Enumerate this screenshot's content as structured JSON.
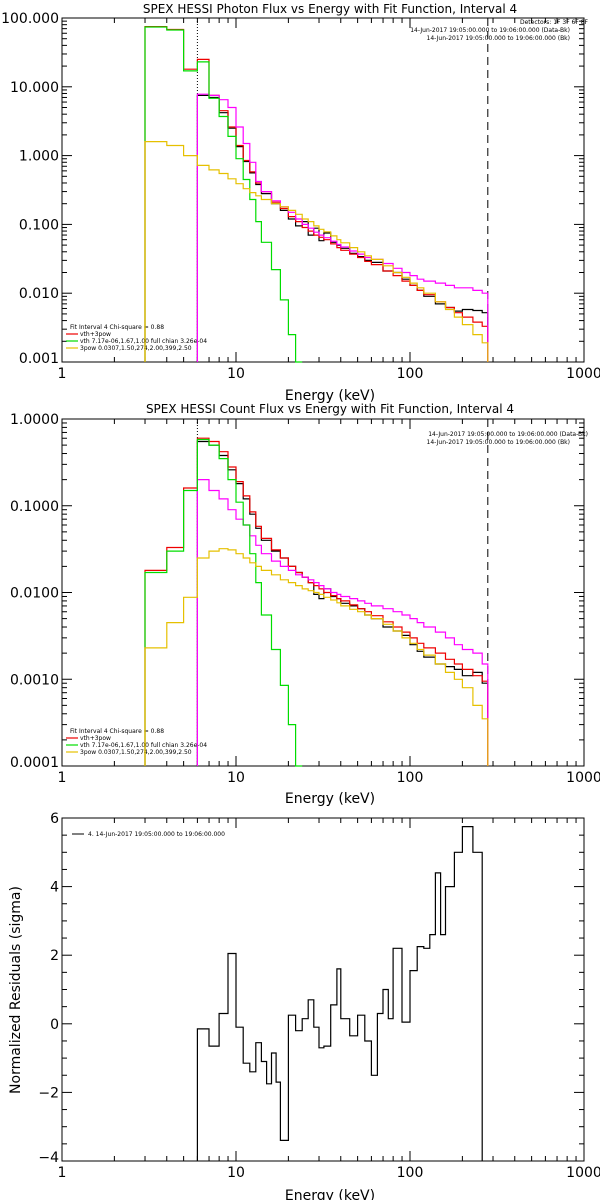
{
  "chart_data": [
    {
      "type": "line",
      "title": "SPEX HESSI Photon Flux vs Energy with Fit Function, Interval 4",
      "xlabel": "Energy (keV)",
      "ylabel": "",
      "xscale": "log",
      "yscale": "log",
      "xlim": [
        1,
        1000
      ],
      "ylim": [
        0.001,
        100
      ],
      "xticklabels": [
        "1",
        "10",
        "100",
        "1000"
      ],
      "yticks": [
        0.001,
        0.01,
        0.1,
        1,
        10,
        100
      ],
      "yticklabels": [
        "0.001",
        "0.010",
        "0.100",
        "1.000",
        "10.000",
        "100.000"
      ],
      "info_lines": [
        "Detectors: 1F 3F 6F 8F",
        "14-Jun-2017 19:05:00.000 to 19:06:00.000 (Data-Bk)",
        "14-Jun-2017 19:05:00.000 to 19:06:00.000 (Bk)"
      ],
      "fit_text": [
        "Fit Interval 4   Chi-square = 0.88",
        "vth+3pow",
        "vth 7.17e-06,1.67,1.00  full chian 3.26e-04",
        "3pow 0.0307,1.50,274,2.00,399,2.50"
      ],
      "vlines": [
        6,
        280
      ],
      "x": [
        3,
        4,
        5,
        6,
        7,
        8,
        9,
        10,
        11,
        12,
        13,
        14,
        16,
        18,
        20,
        22,
        24,
        26,
        28,
        30,
        32,
        35,
        38,
        40,
        45,
        50,
        55,
        60,
        70,
        80,
        90,
        100,
        110,
        120,
        140,
        160,
        180,
        200,
        230,
        260,
        280
      ],
      "series": [
        {
          "name": "",
          "color": "#000000",
          "values": [
            null,
            null,
            null,
            7.5,
            7.0,
            4.2,
            2.5,
            1.35,
            0.82,
            0.56,
            0.38,
            0.28,
            0.2,
            0.16,
            0.12,
            0.095,
            0.11,
            0.07,
            0.088,
            0.058,
            0.075,
            0.055,
            0.05,
            0.045,
            0.038,
            0.034,
            0.03,
            0.028,
            0.021,
            0.02,
            0.016,
            0.013,
            0.011,
            0.009,
            0.007,
            0.0062,
            0.0055,
            0.0058,
            0.0056,
            0.0052,
            null
          ]
        },
        {
          "name": "",
          "color": "#ee0000",
          "values": [
            75,
            68,
            18,
            25,
            7.5,
            4.5,
            2.6,
            1.4,
            0.85,
            0.58,
            0.4,
            0.3,
            0.21,
            0.17,
            0.13,
            0.11,
            0.09,
            0.08,
            0.07,
            0.065,
            0.06,
            0.052,
            0.046,
            0.042,
            0.037,
            0.033,
            0.029,
            0.026,
            0.021,
            0.018,
            0.015,
            0.013,
            0.011,
            0.0095,
            0.0075,
            0.0062,
            0.0052,
            0.0045,
            0.0038,
            0.0033,
            null
          ]
        },
        {
          "name": "",
          "color": "#ff00ff",
          "values": [
            null,
            null,
            null,
            7.8,
            7.5,
            6.5,
            5.0,
            2.6,
            1.5,
            0.8,
            0.42,
            0.3,
            0.22,
            0.18,
            0.15,
            0.12,
            0.1,
            0.088,
            0.077,
            0.07,
            0.064,
            0.057,
            0.051,
            0.047,
            0.041,
            0.037,
            0.033,
            0.031,
            0.027,
            0.023,
            0.02,
            0.018,
            0.016,
            0.015,
            0.014,
            0.013,
            0.012,
            0.012,
            0.011,
            0.01,
            null
          ]
        },
        {
          "name": "",
          "color": "#00dd00",
          "values": [
            74,
            67,
            17,
            23,
            6.8,
            3.7,
            1.9,
            0.9,
            0.45,
            0.23,
            0.11,
            0.055,
            0.022,
            0.008,
            0.0025,
            0.0007,
            null,
            null,
            null,
            null,
            null,
            null,
            null,
            null,
            null,
            null,
            null,
            null,
            null,
            null,
            null,
            null,
            null,
            null,
            null,
            null,
            null,
            null,
            null,
            null,
            null
          ]
        },
        {
          "name": "",
          "color": "#e6c000",
          "values": [
            1.6,
            1.4,
            1.0,
            0.72,
            0.62,
            0.55,
            0.46,
            0.39,
            0.33,
            0.29,
            0.26,
            0.23,
            0.2,
            0.18,
            0.16,
            0.14,
            0.12,
            0.11,
            0.095,
            0.085,
            0.078,
            0.068,
            0.06,
            0.054,
            0.046,
            0.04,
            0.035,
            0.031,
            0.025,
            0.02,
            0.017,
            0.014,
            0.012,
            0.01,
            0.0075,
            0.0058,
            0.0045,
            0.0035,
            0.0025,
            0.0019,
            null
          ]
        }
      ]
    },
    {
      "type": "line",
      "title": "SPEX HESSI Count Flux vs Energy with Fit Function, Interval 4",
      "xlabel": "Energy (keV)",
      "ylabel": "",
      "xscale": "log",
      "yscale": "log",
      "xlim": [
        1,
        1000
      ],
      "ylim": [
        0.0001,
        1
      ],
      "xticklabels": [
        "1",
        "10",
        "100",
        "1000"
      ],
      "yticks": [
        0.0001,
        0.001,
        0.01,
        0.1,
        1
      ],
      "yticklabels": [
        "0.0001",
        "0.0010",
        "0.0100",
        "0.1000",
        "1.0000"
      ],
      "info_lines": [
        "14-Jun-2017 19:05:00.000 to 19:06:00.000 (Data-Bk)",
        "14-Jun-2017 19:05:00.000 to 19:06:00.000 (Bk)"
      ],
      "fit_text": [
        "Fit Interval 4   Chi-square = 0.88",
        "vth+3pow",
        "vth 7.17e-06,1.67,1.00  full chian 3.26e-04",
        "3pow 0.0307,1.50,274,2.00,399,2.50"
      ],
      "vlines": [
        6,
        280
      ],
      "x": [
        3,
        4,
        5,
        6,
        7,
        8,
        9,
        10,
        11,
        12,
        13,
        14,
        16,
        18,
        20,
        22,
        24,
        26,
        28,
        30,
        32,
        35,
        38,
        40,
        45,
        50,
        55,
        60,
        70,
        80,
        90,
        100,
        110,
        120,
        140,
        160,
        180,
        200,
        230,
        260,
        280
      ],
      "series": [
        {
          "name": "",
          "color": "#000000",
          "values": [
            null,
            null,
            null,
            0.55,
            0.5,
            0.38,
            0.26,
            0.18,
            0.12,
            0.08,
            0.055,
            0.04,
            0.03,
            0.025,
            0.02,
            0.017,
            0.015,
            0.013,
            0.0095,
            0.0085,
            0.011,
            0.009,
            0.0085,
            0.0075,
            0.007,
            0.0065,
            0.0055,
            0.005,
            0.004,
            0.0036,
            0.0032,
            0.0025,
            0.0021,
            0.0018,
            0.0015,
            0.0014,
            0.0013,
            0.0011,
            0.0012,
            0.0009,
            null
          ]
        },
        {
          "name": "",
          "color": "#ee0000",
          "values": [
            0.018,
            0.033,
            0.16,
            0.6,
            0.55,
            0.42,
            0.28,
            0.19,
            0.13,
            0.085,
            0.058,
            0.042,
            0.031,
            0.025,
            0.02,
            0.017,
            0.015,
            0.013,
            0.012,
            0.011,
            0.01,
            0.0092,
            0.0085,
            0.008,
            0.0072,
            0.0065,
            0.006,
            0.0054,
            0.0046,
            0.004,
            0.0035,
            0.003,
            0.0026,
            0.0023,
            0.002,
            0.0017,
            0.0015,
            0.0013,
            0.0011,
            0.00095,
            null
          ]
        },
        {
          "name": "",
          "color": "#ff00ff",
          "values": [
            null,
            null,
            null,
            0.2,
            0.15,
            0.12,
            0.09,
            0.07,
            0.06,
            0.045,
            0.035,
            0.028,
            0.023,
            0.02,
            0.018,
            0.016,
            0.015,
            0.014,
            0.013,
            0.012,
            0.011,
            0.01,
            0.0095,
            0.009,
            0.0085,
            0.008,
            0.0075,
            0.007,
            0.0065,
            0.006,
            0.0055,
            0.005,
            0.0045,
            0.004,
            0.0035,
            0.003,
            0.0025,
            0.0022,
            0.002,
            0.0015,
            null
          ]
        },
        {
          "name": "",
          "color": "#00dd00",
          "values": [
            0.017,
            0.03,
            0.15,
            0.58,
            0.5,
            0.35,
            0.2,
            0.11,
            0.06,
            0.028,
            0.013,
            0.0055,
            0.0022,
            0.00085,
            0.0003,
            0.0001,
            null,
            null,
            null,
            null,
            null,
            null,
            null,
            null,
            null,
            null,
            null,
            null,
            null,
            null,
            null,
            null,
            null,
            null,
            null,
            null,
            null,
            null,
            null,
            null,
            null
          ]
        },
        {
          "name": "",
          "color": "#e6c000",
          "values": [
            0.0023,
            0.0045,
            0.0088,
            0.025,
            0.03,
            0.032,
            0.031,
            0.028,
            0.025,
            0.022,
            0.02,
            0.018,
            0.016,
            0.014,
            0.013,
            0.012,
            0.011,
            0.0105,
            0.01,
            0.0095,
            0.0088,
            0.0082,
            0.0076,
            0.007,
            0.0064,
            0.006,
            0.0055,
            0.005,
            0.0043,
            0.0036,
            0.003,
            0.0026,
            0.0022,
            0.0019,
            0.0015,
            0.0012,
            0.001,
            0.0008,
            0.0005,
            0.00035,
            null
          ]
        }
      ]
    },
    {
      "type": "line",
      "title": "",
      "xlabel": "Energy (keV)",
      "ylabel": "Normalized Residuals (sigma)",
      "xscale": "log",
      "yscale": "linear",
      "xlim": [
        1,
        1000
      ],
      "ylim": [
        -4,
        6
      ],
      "xticklabels": [
        "1",
        "10",
        "100",
        "1000"
      ],
      "yticks": [
        -4,
        -2,
        0,
        2,
        4,
        6
      ],
      "yticklabels": [
        "−4",
        "−2",
        "0",
        "2",
        "4",
        "6"
      ],
      "legend": "4. 14-Jun-2017 19:05:00.000 to 19:06:00.000",
      "x": [
        6,
        7,
        8,
        9,
        10,
        11,
        12,
        13,
        14,
        15,
        16,
        17,
        18,
        20,
        22,
        24,
        26,
        28,
        30,
        32,
        35,
        38,
        40,
        45,
        50,
        55,
        60,
        65,
        70,
        75,
        80,
        90,
        100,
        110,
        120,
        130,
        140,
        150,
        160,
        180,
        200,
        230,
        260,
        280
      ],
      "series": [
        {
          "name": "",
          "color": "#000000",
          "values": [
            -0.15,
            -0.65,
            0.3,
            2.05,
            -0.1,
            -1.15,
            -1.4,
            -0.55,
            -1.1,
            -1.75,
            -0.85,
            -1.7,
            -3.4,
            0.25,
            -0.2,
            0.15,
            0.7,
            -0.1,
            -0.7,
            -0.65,
            0.55,
            1.6,
            0.15,
            -0.35,
            0.25,
            -0.5,
            -1.5,
            0.3,
            1.0,
            0.15,
            2.2,
            0.05,
            1.55,
            2.25,
            2.2,
            2.6,
            4.4,
            2.6,
            4.0,
            5.0,
            5.75,
            5.0,
            null,
            null
          ]
        }
      ]
    }
  ]
}
